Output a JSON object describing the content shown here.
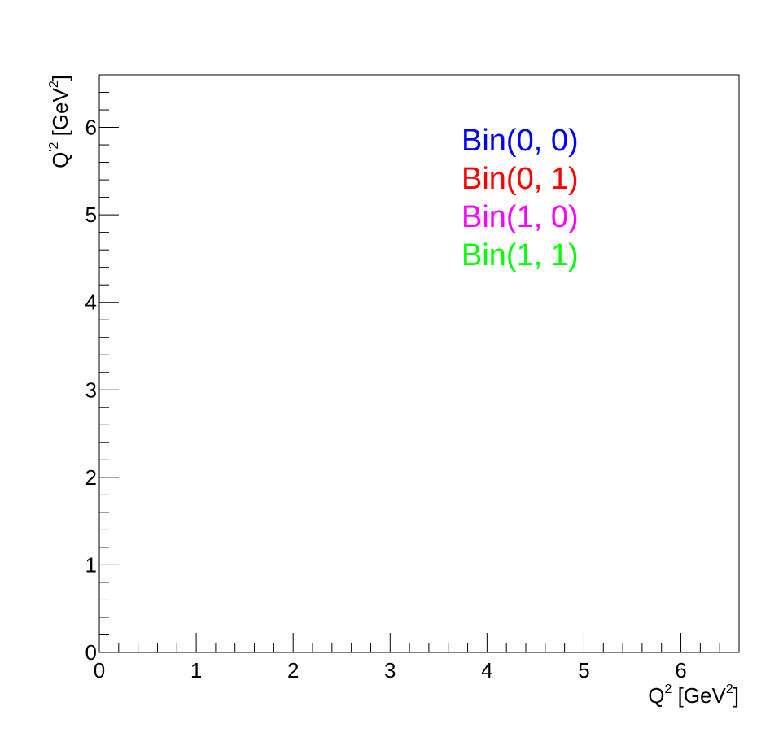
{
  "chart_data": {
    "type": "scatter",
    "title": "",
    "xlabel": {
      "base": "Q",
      "sup": "2",
      "text": " [GeV",
      "sup2": "2",
      "close": "]"
    },
    "ylabel": {
      "base": "Q",
      "sup": "'2",
      "text": " [GeV",
      "sup2": "2",
      "close": "]"
    },
    "xlim": [
      0,
      6.6
    ],
    "ylim": [
      0,
      6.6
    ],
    "x_ticks": [
      "0",
      "1",
      "2",
      "3",
      "4",
      "5",
      "6"
    ],
    "y_ticks": [
      "0",
      "1",
      "2",
      "3",
      "4",
      "5",
      "6"
    ],
    "grid": false,
    "legend_placement": "top-right",
    "series": [
      {
        "name": "Bin(0, 0)",
        "color": "#0000ff",
        "points": []
      },
      {
        "name": "Bin(0, 1)",
        "color": "#ff0000",
        "points": []
      },
      {
        "name": "Bin(1, 0)",
        "color": "#ff00ff",
        "points": []
      },
      {
        "name": "Bin(1, 1)",
        "color": "#00ff00",
        "points": []
      }
    ]
  }
}
